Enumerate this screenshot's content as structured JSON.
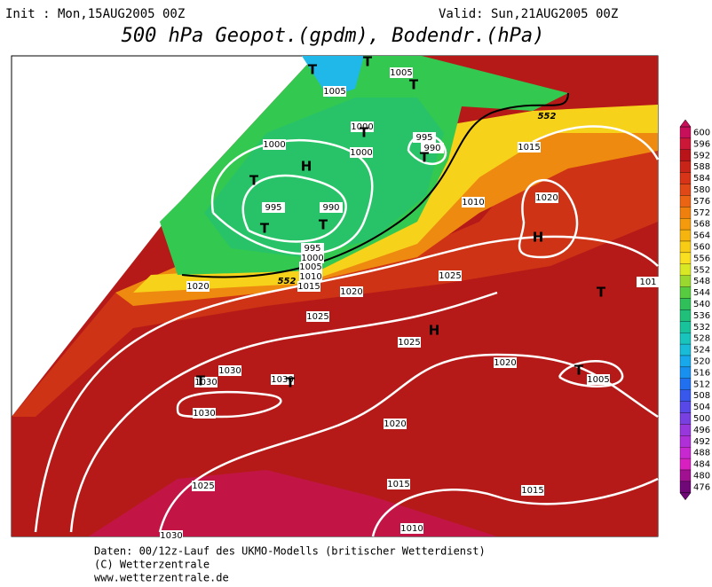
{
  "header": {
    "init": "Init : Mon,15AUG2005 00Z",
    "valid": "Valid: Sun,21AUG2005 00Z",
    "title": "500 hPa Geopot.(gpdm), Bodendr.(hPa)"
  },
  "map": {
    "isobar_labels": [
      "1005",
      "1005",
      "1000",
      "1000",
      "1000",
      "995",
      "990",
      "995",
      "990",
      "995",
      "1000",
      "1005",
      "1010",
      "1015",
      "1020",
      "1020",
      "1025",
      "1025",
      "1010",
      "1015",
      "1020",
      "1025",
      "1020",
      "1005",
      "1030",
      "1030",
      "1030",
      "1030",
      "1020",
      "1015",
      "1025",
      "1015",
      "1010",
      "1030",
      "101"
    ],
    "contour_labels": [
      "552",
      "552"
    ],
    "pressure_centers": [
      "T",
      "T",
      "T",
      "T",
      "T",
      "T",
      "H",
      "T",
      "T",
      "H",
      "H",
      "T",
      "T",
      "T",
      "T"
    ]
  },
  "colorbar": {
    "labels": [
      600,
      596,
      592,
      588,
      584,
      580,
      576,
      572,
      568,
      564,
      560,
      556,
      552,
      548,
      544,
      540,
      536,
      532,
      528,
      524,
      520,
      516,
      512,
      508,
      504,
      500,
      496,
      492,
      488,
      484,
      480,
      476
    ]
  },
  "footer": {
    "lines": [
      "Daten: 00/12z-Lauf des UKMO-Modells (britischer Wetterdienst)",
      "(C) Wetterzentrale",
      "www.wetterzentrale.de"
    ]
  }
}
